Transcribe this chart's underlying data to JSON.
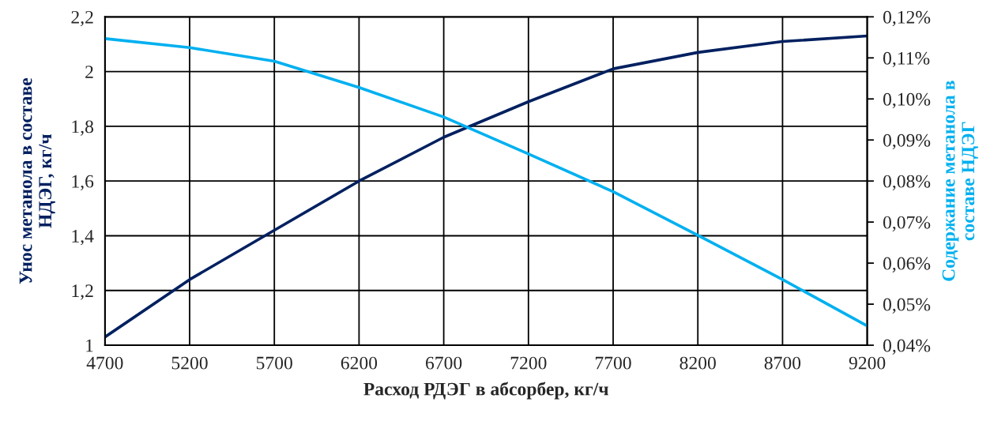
{
  "chart_data": {
    "type": "line",
    "xlabel": "Расход РДЭГ в абсорбер, кг/ч",
    "ylabel": "Унос метанола в составе\nНДЭГ, кг/ч",
    "y2label": "Содержание метанола в\nсоставе НДЭГ",
    "x": [
      4700,
      5200,
      5700,
      6200,
      6700,
      7200,
      7700,
      8200,
      8700,
      9200
    ],
    "series": [
      {
        "color": "#002060",
        "values": [
          1.03,
          1.24,
          1.42,
          1.6,
          1.76,
          1.89,
          2.01,
          2.07,
          2.11,
          2.13
        ]
      },
      {
        "color": "#00b0f0",
        "axis": "y2",
        "values": [
          0.1147,
          0.1125,
          0.1092,
          0.1028,
          0.0956,
          0.0866,
          0.0774,
          0.0668,
          0.056,
          0.0447
        ]
      }
    ],
    "xlim": [
      4700,
      9200
    ],
    "xticks": [
      4700,
      5200,
      5700,
      6200,
      6700,
      7200,
      7700,
      8200,
      8700,
      9200
    ],
    "ylim": [
      1,
      2.2
    ],
    "yticks": [
      1,
      {
        "value": 1.2,
        "label": "1,2"
      },
      {
        "value": 1.4,
        "label": "1,4"
      },
      {
        "value": 1.6,
        "label": "1,6"
      },
      {
        "value": 1.8,
        "label": "1,8"
      },
      2,
      {
        "value": 2.2,
        "label": "2,2"
      }
    ],
    "y2lim": [
      0.04,
      0.12
    ],
    "y2ticks": [
      {
        "value": 0.04,
        "label": "0,04%"
      },
      {
        "value": 0.05,
        "label": "0,05%"
      },
      {
        "value": 0.06,
        "label": "0,06%"
      },
      {
        "value": 0.07,
        "label": "0,07%"
      },
      {
        "value": 0.08,
        "label": "0,08%"
      },
      {
        "value": 0.09,
        "label": "0,09%"
      },
      {
        "value": 0.1,
        "label": "0,10%"
      },
      {
        "value": 0.11,
        "label": "0,11%"
      },
      {
        "value": 0.12,
        "label": "0,12%"
      }
    ],
    "grid": true,
    "marker": "none",
    "line_style": "solid"
  }
}
